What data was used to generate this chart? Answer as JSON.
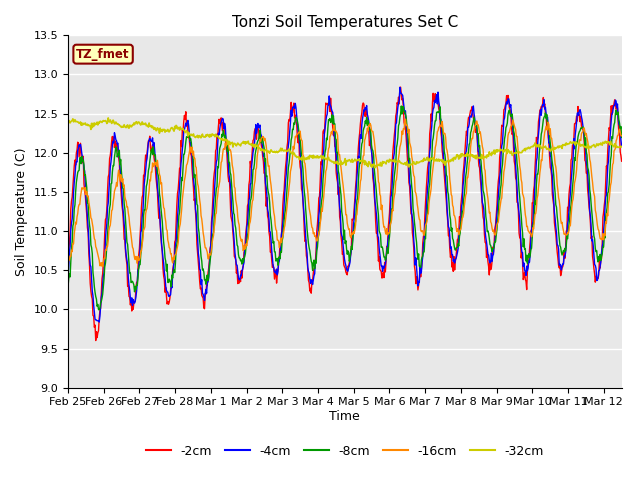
{
  "title": "Tonzi Soil Temperatures Set C",
  "xlabel": "Time",
  "ylabel": "Soil Temperature (C)",
  "ylim": [
    9.0,
    13.5
  ],
  "annotation_text": "TZ_fmet",
  "annotation_color": "#8B0000",
  "annotation_bg": "#FFFFBB",
  "legend_labels": [
    "-2cm",
    "-4cm",
    "-8cm",
    "-16cm",
    "-32cm"
  ],
  "line_colors": [
    "#FF0000",
    "#0000FF",
    "#009900",
    "#FF8800",
    "#CCCC00"
  ],
  "line_widths": [
    1.0,
    1.0,
    1.0,
    1.0,
    1.2
  ],
  "axes_bg": "#E8E8E8",
  "x_tick_labels": [
    "Feb 25",
    "Feb 26",
    "Feb 27",
    "Feb 28",
    "Mar 1",
    "Mar 2",
    "Mar 3",
    "Mar 4",
    "Mar 5",
    "Mar 6",
    "Mar 7",
    "Mar 8",
    "Mar 9",
    "Mar 10",
    "Mar 11",
    "Mar 12"
  ]
}
